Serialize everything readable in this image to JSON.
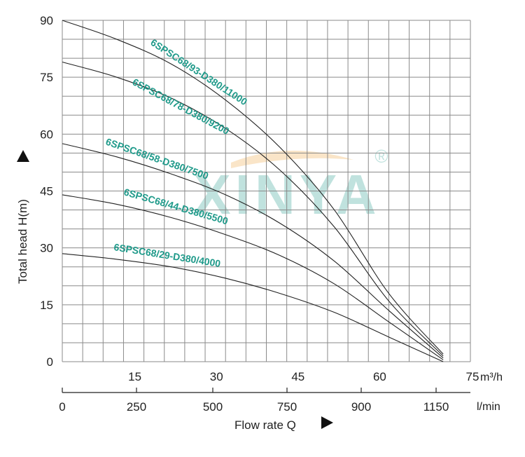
{
  "chart_data": {
    "type": "line",
    "xlabel": "Flow rate Q",
    "ylabel": "Total head H(m)",
    "x_units": [
      "m³/h",
      "l/min"
    ],
    "xlim": [
      0,
      75
    ],
    "ylim": [
      0,
      90
    ],
    "y_ticks": [
      "0",
      "15",
      "30",
      "45",
      "60",
      "75",
      "90"
    ],
    "x_ticks_m3h": [
      "15",
      "30",
      "45",
      "60",
      "75"
    ],
    "x_ticks_lmin": [
      "0",
      "250",
      "500",
      "750",
      "900",
      "1150"
    ],
    "series": [
      {
        "name": "6SPSC68/93-D380/11000",
        "x": [
          0,
          10,
          20,
          30,
          40,
          50,
          60,
          70
        ],
        "y": [
          90,
          85,
          78.5,
          69,
          56.5,
          40,
          18,
          2
        ]
      },
      {
        "name": "6SPSC68/78-D380/9200",
        "x": [
          0,
          10,
          20,
          30,
          40,
          50,
          60,
          70
        ],
        "y": [
          79,
          75,
          69.5,
          61.5,
          50.5,
          35.5,
          16,
          1.5
        ]
      },
      {
        "name": "6SPSC68/58-D380/7500",
        "x": [
          0,
          10,
          20,
          30,
          40,
          50,
          60,
          70
        ],
        "y": [
          57.5,
          54,
          49.5,
          44,
          36.5,
          26.5,
          13.5,
          1
        ]
      },
      {
        "name": "6SPSC68/44-D380/5500",
        "x": [
          0,
          10,
          20,
          30,
          40,
          50,
          60,
          70
        ],
        "y": [
          44,
          41.5,
          38,
          33.5,
          28,
          20.5,
          10.5,
          0.5
        ]
      },
      {
        "name": "6SPSC68/29-D380/4000",
        "x": [
          0,
          10,
          20,
          30,
          40,
          50,
          60,
          70
        ],
        "y": [
          28.5,
          27,
          25,
          22,
          18,
          13,
          6.5,
          0
        ]
      }
    ]
  },
  "watermark": {
    "text": "XINYA",
    "registered": "®",
    "color": "#1f9a8a"
  }
}
